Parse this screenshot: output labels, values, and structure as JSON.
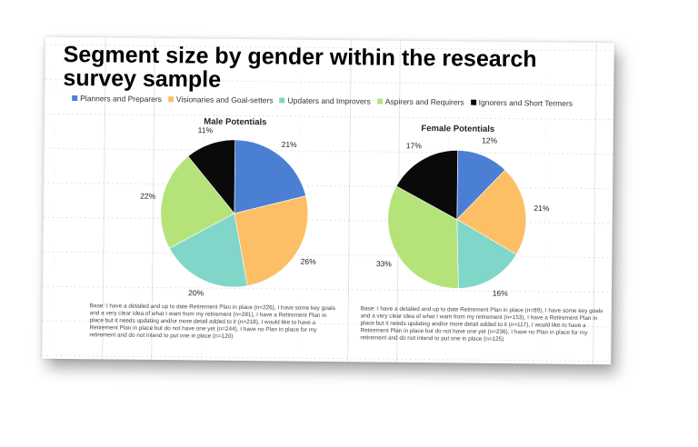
{
  "title": "Segment size by gender within the research survey sample",
  "legend": [
    {
      "label": "Planners and Preparers",
      "color": "#4a7fd4"
    },
    {
      "label": "Visionaries and Goal-setters",
      "color": "#fdbf66"
    },
    {
      "label": "Updaters and Improvers",
      "color": "#7fd6c9"
    },
    {
      "label": "Aspirers and Requirers",
      "color": "#b5e37a"
    },
    {
      "label": "Ignorers and Short Termers",
      "color": "#0a0a0a"
    }
  ],
  "chart_data": [
    {
      "type": "pie",
      "title": "Male Potentials",
      "categories": [
        "Planners and Preparers",
        "Visionaries and Goal-setters",
        "Updaters and Improvers",
        "Aspirers and Requirers",
        "Ignorers and Short Termers"
      ],
      "values": [
        21,
        26,
        20,
        22,
        11
      ],
      "labels": [
        "21%",
        "26%",
        "20%",
        "22%",
        "11%"
      ],
      "colors": [
        "#4a7fd4",
        "#fdbf66",
        "#7fd6c9",
        "#b5e37a",
        "#0a0a0a"
      ],
      "base": "Base: I have a detailed and up to date Retirement Plan in place (n=226), I have some key goals and a very clear idea of what I want from my retirement (n=281), I have a Retirement Plan in place but it needs updating and/or more detail added to it (n=218), I would like to have a Retirement Plan in place but do not have one yet (n=244), I have no Plan in place for my retirement and do not intend to put one in place (n=120)"
    },
    {
      "type": "pie",
      "title": "Female Potentials",
      "categories": [
        "Planners and Preparers",
        "Visionaries and Goal-setters",
        "Updaters and Improvers",
        "Aspirers and Requirers",
        "Ignorers and Short Termers"
      ],
      "values": [
        12,
        21,
        16,
        33,
        17
      ],
      "labels": [
        "12%",
        "21%",
        "16%",
        "33%",
        "17%"
      ],
      "colors": [
        "#4a7fd4",
        "#fdbf66",
        "#7fd6c9",
        "#b5e37a",
        "#0a0a0a"
      ],
      "base": "Base: I have a detailed and up to date Retirement Plan in place (n=89), I have some key goals and a very clear idea of what I want from my retirement (n=153), I have a Retirement Plan in place but it needs updating and/or more detail added to it (n=117), I would like to have a Retirement Plan in place but do not have one yet (n=236), I have no Plan in place for my retirement and do not intend to put one in place (n=125)"
    }
  ]
}
